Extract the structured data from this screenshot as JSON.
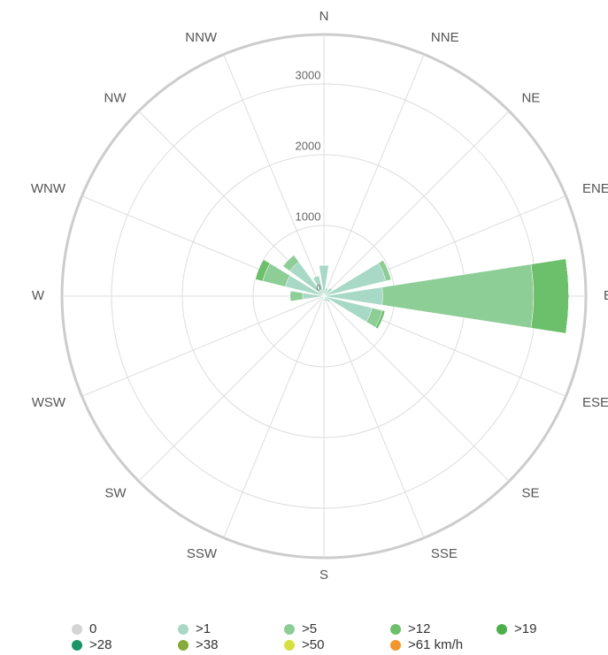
{
  "chart_data": {
    "type": "windrose",
    "categories": [
      "N",
      "NNE",
      "NE",
      "ENE",
      "E",
      "ESE",
      "SE",
      "SSE",
      "S",
      "SSW",
      "SW",
      "WSW",
      "W",
      "WNW",
      "NW",
      "NNW"
    ],
    "ylim": [
      0,
      3700
    ],
    "yticks": [
      0,
      1000,
      2000,
      3000
    ],
    "grid": true,
    "series": [
      {
        "name": "0",
        "color": "#d4d4d4",
        "values": [
          0,
          0,
          0,
          0,
          0,
          0,
          0,
          0,
          0,
          0,
          0,
          0,
          0,
          0,
          0,
          0
        ]
      },
      {
        "name": ">1",
        "color": "#a8d8c6",
        "values": [
          440,
          120,
          150,
          900,
          830,
          700,
          110,
          90,
          70,
          50,
          50,
          60,
          300,
          560,
          600,
          300
        ]
      },
      {
        "name": ">5",
        "color": "#8dcd96",
        "values": [
          0,
          0,
          0,
          80,
          2130,
          150,
          0,
          0,
          0,
          0,
          0,
          0,
          180,
          330,
          120,
          0
        ]
      },
      {
        "name": ">12",
        "color": "#6cbf6b",
        "values": [
          0,
          0,
          0,
          0,
          500,
          40,
          0,
          0,
          0,
          0,
          0,
          0,
          0,
          110,
          0,
          0
        ]
      },
      {
        "name": ">19",
        "color": "#4caf4a",
        "values": [
          0,
          0,
          0,
          0,
          0,
          0,
          0,
          0,
          0,
          0,
          0,
          0,
          0,
          0,
          0,
          0
        ]
      },
      {
        "name": ">28",
        "color": "#1b9468",
        "values": [
          0,
          0,
          0,
          0,
          0,
          0,
          0,
          0,
          0,
          0,
          0,
          0,
          0,
          0,
          0,
          0
        ]
      },
      {
        "name": ">38",
        "color": "#86ab3a",
        "values": [
          0,
          0,
          0,
          0,
          0,
          0,
          0,
          0,
          0,
          0,
          0,
          0,
          0,
          0,
          0,
          0
        ]
      },
      {
        "name": ">50",
        "color": "#d6e040",
        "values": [
          0,
          0,
          0,
          0,
          0,
          0,
          0,
          0,
          0,
          0,
          0,
          0,
          0,
          0,
          0,
          0
        ]
      },
      {
        "name": ">61 km/h",
        "color": "#f0962d",
        "values": [
          0,
          0,
          0,
          0,
          0,
          0,
          0,
          0,
          0,
          0,
          0,
          0,
          0,
          0,
          0,
          0
        ]
      }
    ]
  }
}
